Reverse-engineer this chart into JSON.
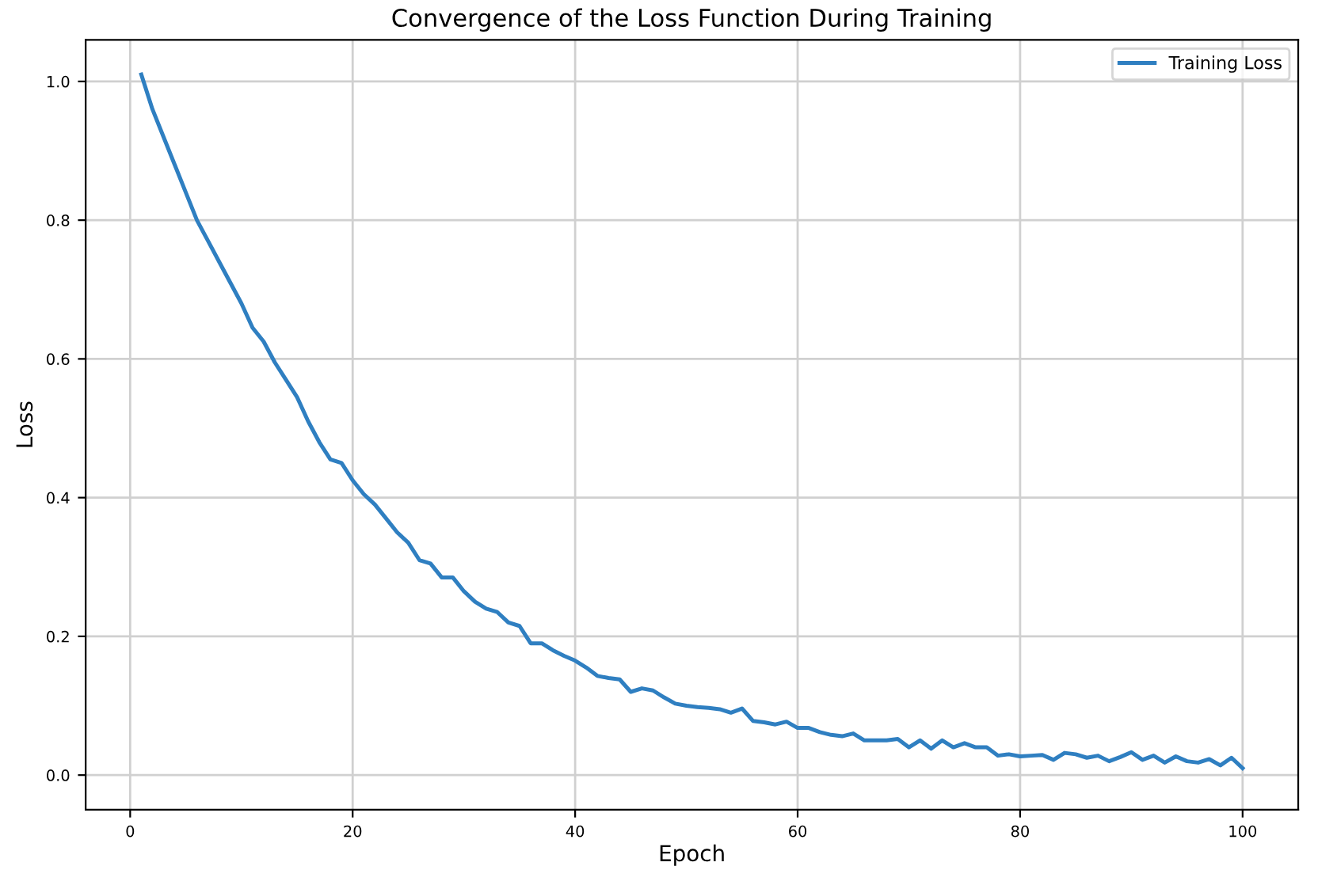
{
  "chart_data": {
    "type": "line",
    "title": "Convergence of the Loss Function During Training",
    "xlabel": "Epoch",
    "ylabel": "Loss",
    "x": [
      1,
      2,
      3,
      4,
      5,
      6,
      7,
      8,
      9,
      10,
      11,
      12,
      13,
      14,
      15,
      16,
      17,
      18,
      19,
      20,
      21,
      22,
      23,
      24,
      25,
      26,
      27,
      28,
      29,
      30,
      31,
      32,
      33,
      34,
      35,
      36,
      37,
      38,
      39,
      40,
      41,
      42,
      43,
      44,
      45,
      46,
      47,
      48,
      49,
      50,
      51,
      52,
      53,
      54,
      55,
      56,
      57,
      58,
      59,
      60,
      61,
      62,
      63,
      64,
      65,
      66,
      67,
      68,
      69,
      70,
      71,
      72,
      73,
      74,
      75,
      76,
      77,
      78,
      79,
      80,
      81,
      82,
      83,
      84,
      85,
      86,
      87,
      88,
      89,
      90,
      91,
      92,
      93,
      94,
      95,
      96,
      97,
      98,
      99,
      100
    ],
    "series": [
      {
        "name": "Training Loss",
        "color": "#2f7fc1",
        "values": [
          1.01,
          0.96,
          0.92,
          0.88,
          0.84,
          0.8,
          0.77,
          0.74,
          0.71,
          0.68,
          0.645,
          0.625,
          0.595,
          0.57,
          0.545,
          0.51,
          0.48,
          0.455,
          0.45,
          0.425,
          0.405,
          0.39,
          0.37,
          0.35,
          0.335,
          0.31,
          0.305,
          0.285,
          0.285,
          0.265,
          0.25,
          0.24,
          0.235,
          0.22,
          0.215,
          0.19,
          0.19,
          0.18,
          0.172,
          0.165,
          0.155,
          0.143,
          0.14,
          0.138,
          0.12,
          0.125,
          0.122,
          0.112,
          0.103,
          0.1,
          0.098,
          0.097,
          0.095,
          0.09,
          0.096,
          0.078,
          0.076,
          0.073,
          0.077,
          0.068,
          0.068,
          0.062,
          0.058,
          0.056,
          0.06,
          0.05,
          0.05,
          0.05,
          0.052,
          0.04,
          0.05,
          0.038,
          0.05,
          0.04,
          0.046,
          0.04,
          0.04,
          0.028,
          0.03,
          0.027,
          0.028,
          0.029,
          0.022,
          0.032,
          0.03,
          0.025,
          0.028,
          0.02,
          0.026,
          0.033,
          0.022,
          0.028,
          0.018,
          0.027,
          0.02,
          0.018,
          0.023,
          0.014,
          0.025,
          0.01
        ]
      }
    ],
    "xlim": [
      -4,
      105
    ],
    "ylim": [
      -0.05,
      1.06
    ],
    "xticks": [
      0,
      20,
      40,
      60,
      80,
      100
    ],
    "yticks": [
      {
        "value": 0,
        "label": "0.0"
      },
      {
        "value": 0.2,
        "label": "0.2"
      },
      {
        "value": 0.4,
        "label": "0.4"
      },
      {
        "value": 0.6,
        "label": "0.6"
      },
      {
        "value": 0.8,
        "label": "0.8"
      },
      {
        "value": 1.0,
        "label": "1.0"
      }
    ],
    "grid": true,
    "legend": "top right",
    "marker": "none",
    "line_style": "solid"
  }
}
